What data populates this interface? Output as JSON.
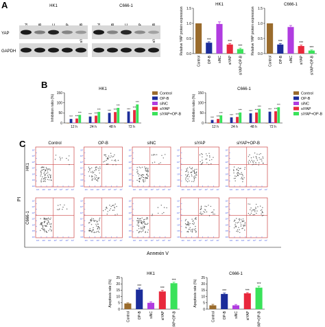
{
  "colors": {
    "control": "#9a6b2c",
    "opb": "#1c2d9a",
    "sinc": "#b03ce0",
    "siyap": "#e8283c",
    "combo": "#3ae25a",
    "blot_bg": "#d8d8d8",
    "band": "#1a1a1a",
    "flow_border": "#c44",
    "flow_grid": "#3a52e0"
  },
  "panel_labels": {
    "a": "A",
    "b": "B",
    "c": "C"
  },
  "blot": {
    "cell_lines": [
      "HK1",
      "C666-1"
    ],
    "lanes": [
      "Control",
      "OP-B",
      "siNC",
      "siYAP",
      "siYAP+OP-B"
    ],
    "rows": [
      "YAP",
      "GAPDH"
    ],
    "yap_intensity": {
      "HK1": [
        1,
        0.35,
        0.95,
        0.3,
        0.15
      ],
      "C666-1": [
        1,
        0.3,
        0.9,
        0.25,
        0.1
      ]
    }
  },
  "flow": {
    "columns": [
      "Control",
      "OP-B",
      "siNC",
      "siYAP",
      "siYAP+OP-B"
    ],
    "rows": [
      "HK1",
      "C666-1"
    ],
    "x_title": "Annexin V",
    "y_title": "PI",
    "ticks": [
      "10¹",
      "10²",
      "10³",
      "10⁴",
      "10⁵",
      "10⁶",
      "10⁷"
    ]
  },
  "chart_data": [
    {
      "type": "bar",
      "panel": "A",
      "title": "HK1",
      "ylabel": "Relative YAP protein expression",
      "ylim": [
        0,
        1.5
      ],
      "yticks": [
        "0.0",
        "0.5",
        "1.0",
        "1.5"
      ],
      "categories": [
        "Control",
        "OP-B",
        "siNC",
        "siYAP",
        "siYAP+OP-B"
      ],
      "values": [
        1.0,
        0.36,
        0.98,
        0.3,
        0.15
      ],
      "errors": [
        0,
        0.03,
        0.07,
        0.03,
        0.03
      ],
      "sig": [
        "",
        "***",
        "",
        "***",
        "***"
      ]
    },
    {
      "type": "bar",
      "panel": "A",
      "title": "C666-1",
      "ylabel": "Relative YAP protein expression",
      "ylim": [
        0,
        1.5
      ],
      "yticks": [
        "0.0",
        "0.5",
        "1.0",
        "1.5"
      ],
      "categories": [
        "Control",
        "OP-B",
        "siNC",
        "siYAP",
        "siYAP+OP-B"
      ],
      "values": [
        1.0,
        0.3,
        0.88,
        0.25,
        0.1
      ],
      "errors": [
        0,
        0.03,
        0.05,
        0.03,
        0.02
      ],
      "sig": [
        "",
        "***",
        "",
        "***",
        "***"
      ]
    },
    {
      "type": "bar",
      "panel": "B",
      "title": "HK1",
      "ylabel": "Inhibition ratio (%)",
      "ylim": [
        0,
        150
      ],
      "yticks": [
        "0",
        "50",
        "100",
        "150"
      ],
      "categories": [
        "12 h",
        "24 h",
        "48 h",
        "72 h"
      ],
      "series": [
        {
          "name": "Control",
          "values": [
            0,
            0,
            0,
            0
          ]
        },
        {
          "name": "OP-B",
          "values": [
            20,
            32,
            50,
            57
          ]
        },
        {
          "name": "siNC",
          "values": [
            2,
            3,
            4,
            5
          ]
        },
        {
          "name": "siYAP",
          "values": [
            22,
            36,
            54,
            64
          ]
        },
        {
          "name": "siYAP+OP-B",
          "values": [
            40,
            55,
            75,
            92
          ]
        }
      ],
      "sig": [
        [
          "",
          "***",
          "",
          "***",
          "***"
        ],
        [
          "",
          "***",
          "",
          "***",
          "***"
        ],
        [
          "",
          "***",
          "",
          "***",
          "***"
        ],
        [
          "",
          "***",
          "",
          "***",
          "***"
        ]
      ]
    },
    {
      "type": "bar",
      "panel": "B",
      "title": "C666-1",
      "ylabel": "Inhibition ratio (%)",
      "ylim": [
        0,
        150
      ],
      "yticks": [
        "0",
        "50",
        "100",
        "150"
      ],
      "categories": [
        "12 h",
        "24 h",
        "48 h",
        "72 h"
      ],
      "series": [
        {
          "name": "Control",
          "values": [
            0,
            0,
            0,
            0
          ]
        },
        {
          "name": "OP-B",
          "values": [
            15,
            28,
            48,
            56
          ]
        },
        {
          "name": "siNC",
          "values": [
            2,
            3,
            4,
            4
          ]
        },
        {
          "name": "siYAP",
          "values": [
            20,
            30,
            52,
            58
          ]
        },
        {
          "name": "siYAP+OP-B",
          "values": [
            38,
            52,
            70,
            78
          ]
        }
      ],
      "sig": [
        [
          "",
          "***",
          "",
          "***",
          "***"
        ],
        [
          "",
          "***",
          "",
          "***",
          "***"
        ],
        [
          "",
          "***",
          "",
          "***",
          "***"
        ],
        [
          "",
          "***",
          "",
          "***",
          "***"
        ]
      ]
    },
    {
      "type": "bar",
      "panel": "C",
      "title": "HK1",
      "ylabel": "Apoptosis rate (%)",
      "ylim": [
        0,
        25
      ],
      "yticks": [
        "0",
        "5",
        "10",
        "15",
        "20",
        "25"
      ],
      "categories": [
        "Control",
        "OP-B",
        "siNC",
        "siYAP",
        "siYAP+OP-B"
      ],
      "values": [
        4.5,
        15.5,
        5,
        14,
        20.5
      ],
      "errors": [
        0.5,
        1.2,
        0.8,
        0.9,
        0.8
      ],
      "sig": [
        "",
        "***",
        "",
        "***",
        "***"
      ]
    },
    {
      "type": "bar",
      "panel": "C",
      "title": "C666-1",
      "ylabel": "Apoptosis rate (%)",
      "ylim": [
        0,
        25
      ],
      "yticks": [
        "0",
        "5",
        "10",
        "15",
        "20",
        "25"
      ],
      "categories": [
        "Control",
        "OP-B",
        "siNC",
        "siYAP",
        "siYAP+OP-B"
      ],
      "values": [
        3,
        12,
        3,
        12.5,
        17
      ],
      "errors": [
        0.8,
        0.7,
        0.7,
        0.6,
        1.2
      ],
      "sig": [
        "",
        "***",
        "",
        "***",
        "***"
      ]
    }
  ]
}
